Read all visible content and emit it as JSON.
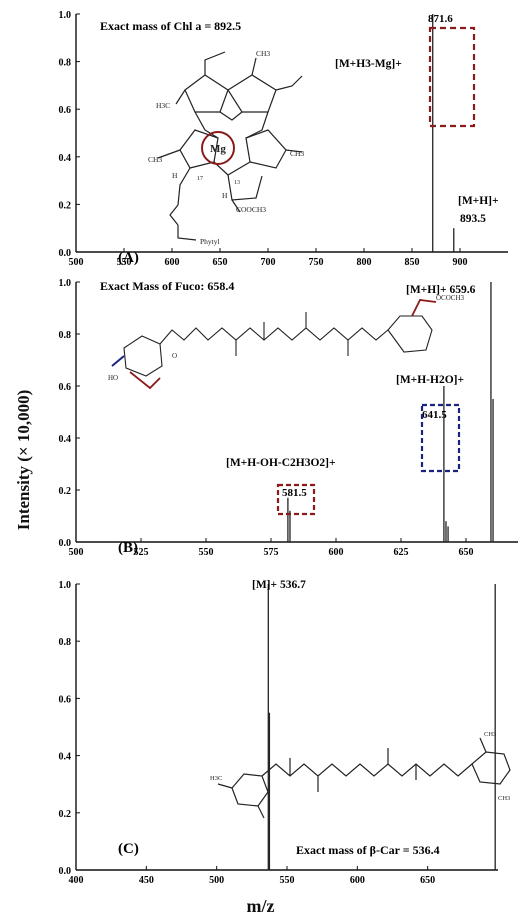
{
  "figure": {
    "ylabel": "Intensity (× 10,000)",
    "xlabel": "m/z"
  },
  "chart_data": [
    {
      "type": "bar",
      "panel_label": "(A)",
      "annotation": "Exact mass of Chl a = 892.5",
      "xlim": [
        500,
        950
      ],
      "ylim": [
        0,
        1.0
      ],
      "xticks": [
        "500",
        "550",
        "600",
        "650",
        "700",
        "750",
        "800",
        "850",
        "900"
      ],
      "yticks": [
        "0.0",
        "0.2",
        "0.4",
        "0.6",
        "0.8",
        "1.0"
      ],
      "peaks": [
        {
          "x": 871.6,
          "y": 1.0
        },
        {
          "x": 893.5,
          "y": 0.1
        }
      ],
      "peak_labels": [
        {
          "text": "871.6",
          "kind": "value"
        },
        {
          "text": "[M+H3-Mg]+",
          "kind": "ion"
        },
        {
          "text": "[M+H]+",
          "kind": "ion"
        },
        {
          "text": "893.5",
          "kind": "value"
        }
      ],
      "structure_labels": [
        "Mg",
        "Phytyl",
        "COOCH3",
        "H3C",
        "CH3",
        "H",
        "17",
        "13"
      ],
      "highlight_color": "#8b1a1a"
    },
    {
      "type": "bar",
      "panel_label": "(B)",
      "annotation": "Exact Mass of Fuco: 658.4",
      "xlim": [
        500,
        670
      ],
      "ylim": [
        0,
        1.0
      ],
      "xticks": [
        "500",
        "525",
        "550",
        "575",
        "600",
        "625",
        "650"
      ],
      "yticks": [
        "0.0",
        "0.2",
        "0.4",
        "0.6",
        "0.8",
        "1.0"
      ],
      "peaks": [
        {
          "x": 581.5,
          "y": 0.17
        },
        {
          "x": 582.3,
          "y": 0.12
        },
        {
          "x": 641.5,
          "y": 0.6
        },
        {
          "x": 642.3,
          "y": 0.08
        },
        {
          "x": 643.1,
          "y": 0.06
        },
        {
          "x": 659.6,
          "y": 1.0
        },
        {
          "x": 660.4,
          "y": 0.55
        }
      ],
      "peak_labels": [
        {
          "text": "[M+H]+ 659.6",
          "kind": "ion"
        },
        {
          "text": "[M+H-H2O]+",
          "kind": "ion"
        },
        {
          "text": "641.5",
          "kind": "value"
        },
        {
          "text": "[M+H-OH-C2H3O2]+",
          "kind": "ion"
        },
        {
          "text": "581.5",
          "kind": "value"
        }
      ],
      "structure_labels": [
        "OCOCH3",
        "HO",
        "O"
      ],
      "highlight_colors": [
        "#8b1a1a",
        "#1a237e"
      ]
    },
    {
      "type": "bar",
      "panel_label": "(C)",
      "annotation": "Exact mass of β-Car = 536.4",
      "xlim": [
        400,
        700
      ],
      "ylim": [
        0,
        1.0
      ],
      "xticks": [
        "400",
        "450",
        "500",
        "550",
        "600",
        "650"
      ],
      "yticks": [
        "0.0",
        "0.2",
        "0.4",
        "0.6",
        "0.8",
        "1.0"
      ],
      "peaks": [
        {
          "x": 536.7,
          "y": 1.0
        },
        {
          "x": 537.5,
          "y": 0.55
        },
        {
          "x": 698,
          "y": 1.0
        }
      ],
      "peak_labels": [
        {
          "text": "[M]+ 536.7",
          "kind": "ion"
        }
      ],
      "structure_labels": [
        "H3C",
        "CH3"
      ]
    }
  ]
}
